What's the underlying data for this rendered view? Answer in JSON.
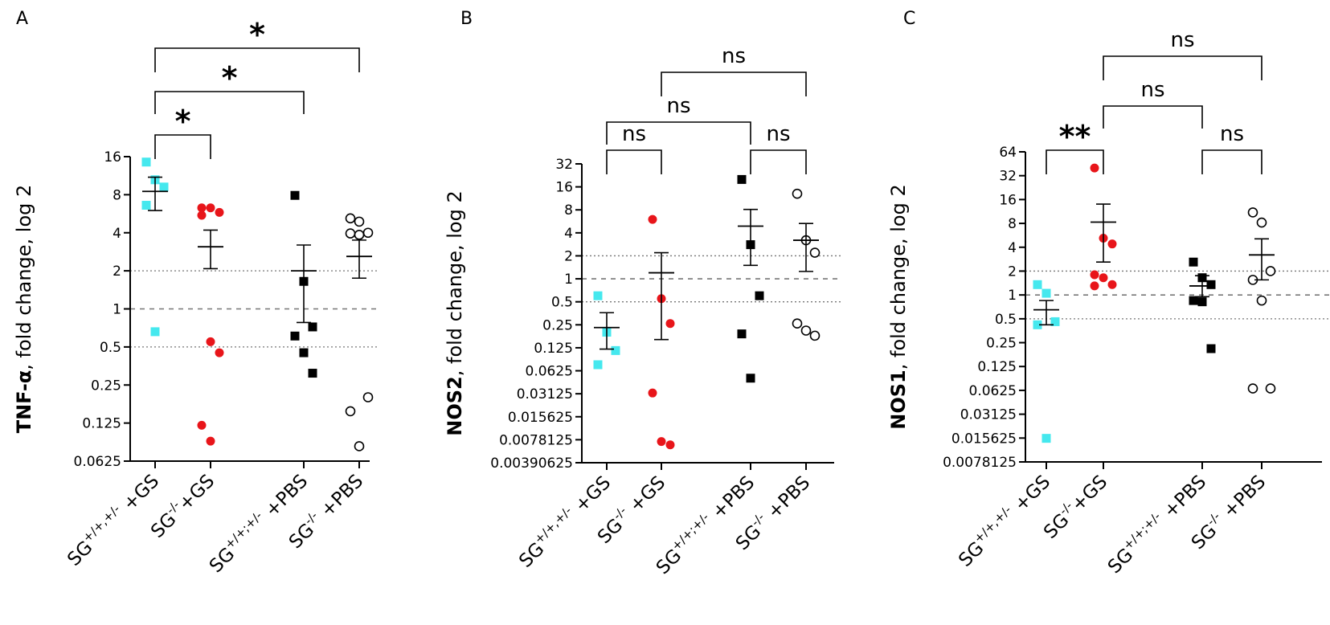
{
  "chart_data": [
    {
      "type": "scatter",
      "panel_label": "A",
      "ylabel_bold": "TNF-α",
      "ylabel_rest": ", fold change, log 2",
      "yscale": "log2",
      "yticks": [
        16,
        8,
        4,
        2,
        1,
        0.5,
        0.25,
        0.125,
        0.0625
      ],
      "ytick_labels": [
        "16",
        "8",
        "4",
        "2",
        "1",
        "0.5",
        "0.25",
        "0.125",
        "0.0625"
      ],
      "ylim": [
        0.0625,
        16
      ],
      "reference_lines": [
        {
          "value": 2,
          "style": "dotted"
        },
        {
          "value": 1,
          "style": "dashed"
        },
        {
          "value": 0.5,
          "style": "dotted"
        }
      ],
      "groups": [
        {
          "base": "SG",
          "sup": "+/+,+/-",
          "suffix": " +GS",
          "color": "#45e8ee",
          "marker": "square",
          "values": [
            14.5,
            10.5,
            9.2,
            6.6,
            0.66
          ],
          "mean": 8.5,
          "sem_low": 6.0,
          "sem_high": 11.0
        },
        {
          "base": "SG",
          "sup": "-/-",
          "suffix": "+GS",
          "color": "#e8151a",
          "marker": "circle",
          "values": [
            6.3,
            6.3,
            5.8,
            5.5,
            0.55,
            0.45,
            0.12,
            0.09
          ],
          "mean": 3.1,
          "sem_low": 2.08,
          "sem_high": 4.2
        },
        {
          "base": "SG",
          "sup": "+/+;+/-",
          "suffix": " +PBS",
          "color": "#000000",
          "marker": "square",
          "values": [
            7.9,
            1.65,
            0.72,
            0.61,
            0.45,
            0.31
          ],
          "mean": 2.0,
          "sem_low": 0.78,
          "sem_high": 3.2
        },
        {
          "base": "SG",
          "sup": "-/-",
          "suffix": " +PBS",
          "color": "#000000",
          "marker": "circle-open",
          "values": [
            5.2,
            4.9,
            4.0,
            3.95,
            3.85,
            0.2,
            0.155,
            0.082
          ],
          "mean": 2.6,
          "sem_low": 1.75,
          "sem_high": 3.5
        }
      ],
      "comparisons": [
        {
          "from": 0,
          "to": 1,
          "label": "*",
          "tier": 1
        },
        {
          "from": 0,
          "to": 2,
          "label": "*",
          "tier": 2
        },
        {
          "from": 0,
          "to": 3,
          "label": "*",
          "tier": 3
        }
      ]
    },
    {
      "type": "scatter",
      "panel_label": "B",
      "ylabel_bold": "NOS2",
      "ylabel_rest": ", fold change, log 2",
      "yscale": "log2",
      "yticks": [
        32,
        16,
        8,
        4,
        2,
        1,
        0.5,
        0.25,
        0.125,
        0.0625,
        0.03125,
        0.015625,
        0.0078125,
        0.00390625
      ],
      "ytick_labels": [
        "32",
        "16",
        "8",
        "4",
        "2",
        "1",
        "0.5",
        "0.25",
        "0.125",
        "0.0625",
        "0.03125",
        "0.015625",
        "0.0078125",
        "0.00390625"
      ],
      "ylim": [
        0.00390625,
        32
      ],
      "reference_lines": [
        {
          "value": 2,
          "style": "dotted"
        },
        {
          "value": 1,
          "style": "dashed"
        },
        {
          "value": 0.5,
          "style": "dotted"
        }
      ],
      "groups": [
        {
          "base": "SG",
          "sup": "+/+,+/-",
          "suffix": " +GS",
          "color": "#45e8ee",
          "marker": "square",
          "values": [
            0.6,
            0.2,
            0.115,
            0.075
          ],
          "mean": 0.23,
          "sem_low": 0.12,
          "sem_high": 0.36
        },
        {
          "base": "SG",
          "sup": "-/-",
          "suffix": " +GS",
          "color": "#e8151a",
          "marker": "circle",
          "values": [
            6.0,
            0.55,
            0.26,
            0.032,
            0.0074,
            0.0067
          ],
          "mean": 1.2,
          "sem_low": 0.16,
          "sem_high": 2.2
        },
        {
          "base": "SG",
          "sup": "+/+;+/-",
          "suffix": " +PBS",
          "color": "#000000",
          "marker": "square",
          "values": [
            20,
            2.8,
            0.6,
            0.19,
            0.05
          ],
          "mean": 4.9,
          "sem_low": 1.5,
          "sem_high": 8.1
        },
        {
          "base": "SG",
          "sup": "-/-",
          "suffix": " +PBS",
          "color": "#000000",
          "marker": "circle-open",
          "values": [
            13,
            3.2,
            2.2,
            0.26,
            0.21,
            0.18
          ],
          "mean": 3.2,
          "sem_low": 1.25,
          "sem_high": 5.3
        }
      ],
      "comparisons": [
        {
          "from": 0,
          "to": 1,
          "label": "ns",
          "tier": 1
        },
        {
          "from": 2,
          "to": 3,
          "label": "ns",
          "tier": 1
        },
        {
          "from": 0,
          "to": 2,
          "label": "ns",
          "tier": 2
        },
        {
          "from": 1,
          "to": 3,
          "label": "ns",
          "tier": 3
        }
      ]
    },
    {
      "type": "scatter",
      "panel_label": "C",
      "ylabel_bold": "NOS1",
      "ylabel_rest": ", fold change, log 2",
      "yscale": "log2",
      "yticks": [
        64,
        32,
        16,
        8,
        4,
        2,
        1,
        0.5,
        0.25,
        0.125,
        0.0625,
        0.03125,
        0.015625,
        0.0078125
      ],
      "ytick_labels": [
        "64",
        "32",
        "16",
        "8",
        "4",
        "2",
        "1",
        "0.5",
        "0.25",
        "0.125",
        "0.0625",
        "0.03125",
        "0.015625",
        "0.0078125"
      ],
      "ylim": [
        0.0078125,
        64
      ],
      "reference_lines": [
        {
          "value": 2,
          "style": "dotted"
        },
        {
          "value": 1,
          "style": "dashed"
        },
        {
          "value": 0.5,
          "style": "dotted"
        }
      ],
      "groups": [
        {
          "base": "SG",
          "sup": "+/+,+/-",
          "suffix": " +GS",
          "color": "#45e8ee",
          "marker": "square",
          "values": [
            1.35,
            1.05,
            0.46,
            0.42,
            0.0155
          ],
          "mean": 0.65,
          "sem_low": 0.42,
          "sem_high": 0.85
        },
        {
          "base": "SG",
          "sup": "-/-",
          "suffix": "+GS",
          "color": "#e8151a",
          "marker": "circle",
          "values": [
            40,
            5.2,
            4.4,
            1.8,
            1.65,
            1.35,
            1.3
          ],
          "mean": 8.3,
          "sem_low": 2.6,
          "sem_high": 14
        },
        {
          "base": "SG",
          "sup": "+/+;+/-",
          "suffix": " +PBS",
          "color": "#000000",
          "marker": "square",
          "values": [
            2.6,
            1.65,
            1.35,
            0.85,
            0.82,
            0.21
          ],
          "mean": 1.3,
          "sem_low": 0.95,
          "sem_high": 1.75
        },
        {
          "base": "SG",
          "sup": "-/-",
          "suffix": " +PBS",
          "color": "#000000",
          "marker": "circle-open",
          "values": [
            11,
            8.2,
            2.0,
            1.55,
            0.85,
            0.066,
            0.066
          ],
          "mean": 3.2,
          "sem_low": 1.55,
          "sem_high": 5.1
        }
      ],
      "comparisons": [
        {
          "from": 0,
          "to": 1,
          "label": "**",
          "tier": 1
        },
        {
          "from": 2,
          "to": 3,
          "label": "ns",
          "tier": 1
        },
        {
          "from": 1,
          "to": 2,
          "label": "ns",
          "tier": 2
        },
        {
          "from": 1,
          "to": 3,
          "label": "ns",
          "tier": 3
        }
      ]
    }
  ]
}
